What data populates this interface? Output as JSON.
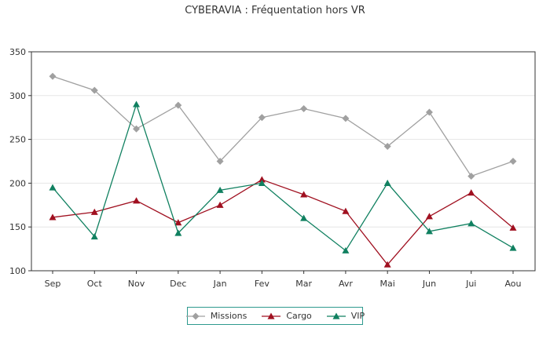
{
  "chart_data": {
    "type": "line",
    "title": "CYBERAVIA : Fréquentation hors VR",
    "categories": [
      "Sep",
      "Oct",
      "Nov",
      "Dec",
      "Jan",
      "Fev",
      "Mar",
      "Avr",
      "Mai",
      "Jun",
      "Jui",
      "Aou"
    ],
    "yticks": [
      "100",
      "150",
      "200",
      "250",
      "300",
      "350"
    ],
    "ylim": [
      100,
      350
    ],
    "grid": true,
    "legend_position": "bottom",
    "series": [
      {
        "name": "Missions",
        "color": "#a0a0a0",
        "marker": "diamond",
        "values": [
          322,
          306,
          262,
          289,
          225,
          275,
          285,
          274,
          242,
          281,
          208,
          225
        ]
      },
      {
        "name": "Cargo",
        "color": "#a01020",
        "marker": "triangle",
        "values": [
          161,
          167,
          180,
          155,
          175,
          204,
          187,
          168,
          107,
          162,
          189,
          149
        ]
      },
      {
        "name": "VIP",
        "color": "#108060",
        "marker": "triangle",
        "values": [
          195,
          139,
          290,
          143,
          192,
          200,
          160,
          123,
          200,
          145,
          154,
          126
        ]
      }
    ]
  }
}
